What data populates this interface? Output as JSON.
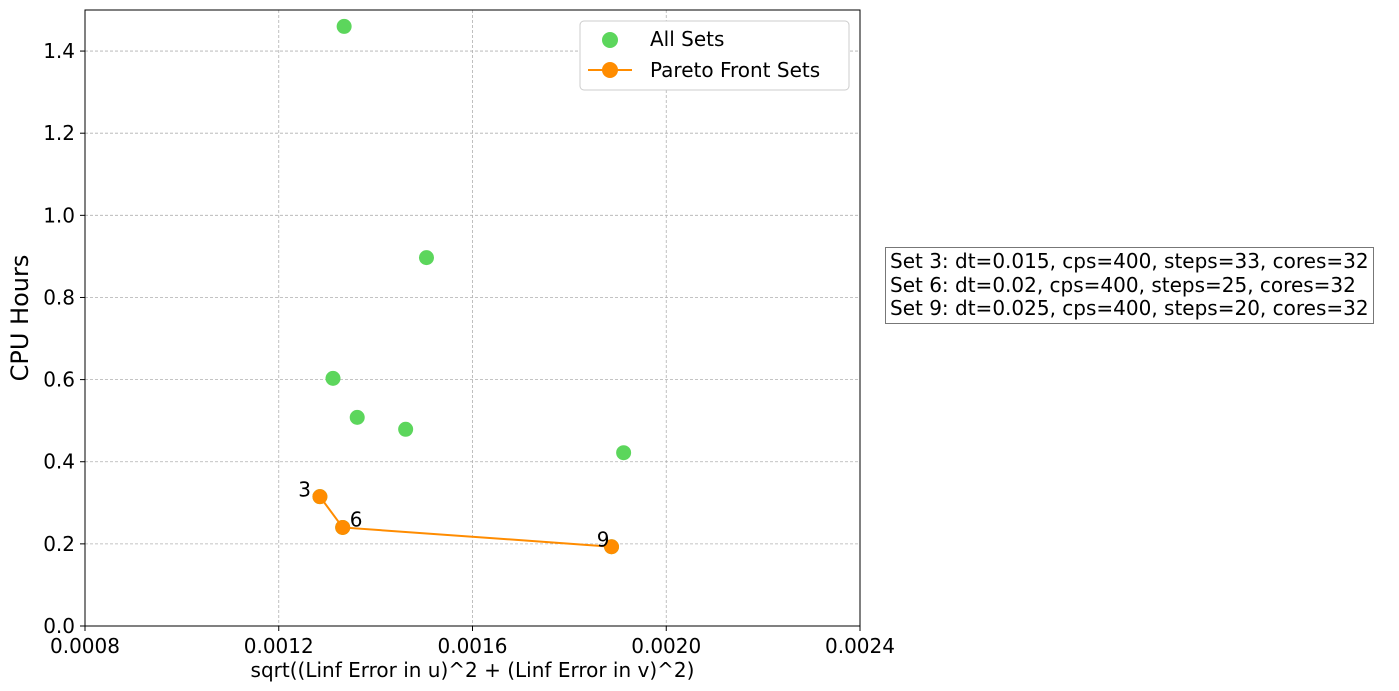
{
  "chart_data": {
    "type": "scatter",
    "xlabel": "sqrt((Linf Error in u)^2 + (Linf Error in v)^2)",
    "ylabel": "CPU Hours",
    "xlim": [
      0.0008,
      0.0024
    ],
    "ylim": [
      0.0,
      1.5
    ],
    "xticks": [
      "0.0008",
      "0.0012",
      "0.0016",
      "0.0020",
      "0.0024"
    ],
    "yticks": [
      "0.0",
      "0.2",
      "0.4",
      "0.6",
      "0.8",
      "1.0",
      "1.2",
      "1.4"
    ],
    "grid": true,
    "legend_position": "top-right",
    "series": [
      {
        "name": "All Sets",
        "kind": "scatter",
        "color": "#5cd65c",
        "points": [
          {
            "x": 0.001335,
            "y": 1.46
          },
          {
            "x": 0.001505,
            "y": 0.897
          },
          {
            "x": 0.001312,
            "y": 0.603
          },
          {
            "x": 0.001362,
            "y": 0.508
          },
          {
            "x": 0.001462,
            "y": 0.479
          },
          {
            "x": 0.001912,
            "y": 0.422
          },
          {
            "x": 0.001285,
            "y": 0.315
          },
          {
            "x": 0.001332,
            "y": 0.24
          },
          {
            "x": 0.001887,
            "y": 0.193
          }
        ]
      },
      {
        "name": "Pareto Front Sets",
        "kind": "line-marker",
        "color": "#ff8c00",
        "points": [
          {
            "x": 0.001285,
            "y": 0.315,
            "label": "3"
          },
          {
            "x": 0.001332,
            "y": 0.24,
            "label": "6"
          },
          {
            "x": 0.001887,
            "y": 0.193,
            "label": "9"
          }
        ]
      }
    ],
    "annotation": [
      "Set 3: dt=0.015, cps=400, steps=33, cores=32",
      "Set 6: dt=0.02, cps=400, steps=25, cores=32",
      "Set 9: dt=0.025, cps=400, steps=20, cores=32"
    ]
  }
}
